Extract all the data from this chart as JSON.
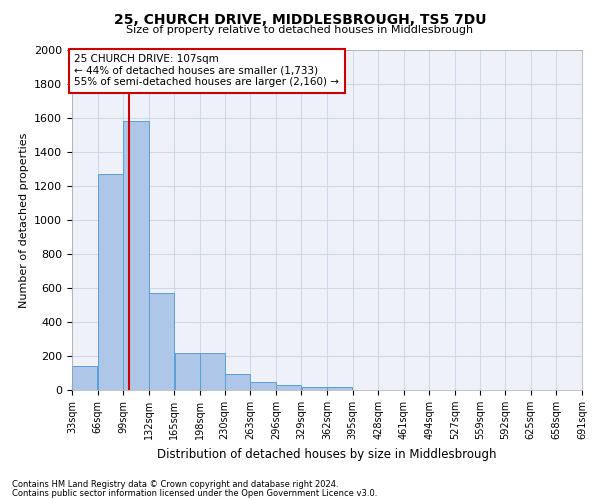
{
  "title1": "25, CHURCH DRIVE, MIDDLESBROUGH, TS5 7DU",
  "title2": "Size of property relative to detached houses in Middlesbrough",
  "xlabel": "Distribution of detached houses by size in Middlesbrough",
  "ylabel": "Number of detached properties",
  "footnote1": "Contains HM Land Registry data © Crown copyright and database right 2024.",
  "footnote2": "Contains public sector information licensed under the Open Government Licence v3.0.",
  "bins": [
    33,
    66,
    99,
    132,
    165,
    198,
    230,
    263,
    296,
    329,
    362,
    395,
    428,
    461,
    494,
    527,
    559,
    592,
    625,
    658,
    691
  ],
  "bar_heights": [
    140,
    1270,
    1580,
    570,
    220,
    220,
    95,
    50,
    30,
    20,
    15,
    0,
    0,
    0,
    0,
    0,
    0,
    0,
    0,
    0
  ],
  "bar_color": "#aec6e8",
  "bar_edge_color": "#5a9fd4",
  "red_line_x": 107,
  "annotation_title": "25 CHURCH DRIVE: 107sqm",
  "annotation_line1": "← 44% of detached houses are smaller (1,733)",
  "annotation_line2": "55% of semi-detached houses are larger (2,160) →",
  "annotation_box_color": "#ffffff",
  "annotation_box_edge_color": "#cc0000",
  "ylim": [
    0,
    2000
  ],
  "yticks": [
    0,
    200,
    400,
    600,
    800,
    1000,
    1200,
    1400,
    1600,
    1800,
    2000
  ],
  "grid_color": "#d0d8e8",
  "bg_color": "#eef2f8"
}
